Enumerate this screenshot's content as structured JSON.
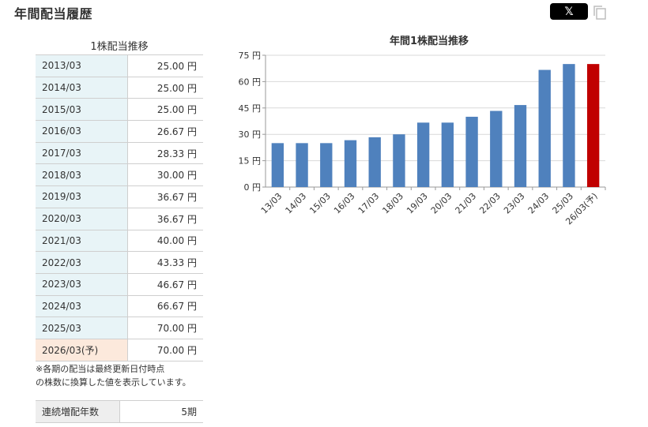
{
  "header": {
    "title": "年間配当履歴",
    "share_label": "𝕏"
  },
  "table": {
    "caption": "1株配当推移",
    "rows": [
      {
        "period": "2013/03",
        "value": "25.00 円"
      },
      {
        "period": "2014/03",
        "value": "25.00 円"
      },
      {
        "period": "2015/03",
        "value": "25.00 円"
      },
      {
        "period": "2016/03",
        "value": "26.67 円"
      },
      {
        "period": "2017/03",
        "value": "28.33 円"
      },
      {
        "period": "2018/03",
        "value": "30.00 円"
      },
      {
        "period": "2019/03",
        "value": "36.67 円"
      },
      {
        "period": "2020/03",
        "value": "36.67 円"
      },
      {
        "period": "2021/03",
        "value": "40.00 円"
      },
      {
        "period": "2022/03",
        "value": "43.33 円"
      },
      {
        "period": "2023/03",
        "value": "46.67 円"
      },
      {
        "period": "2024/03",
        "value": "66.67 円"
      },
      {
        "period": "2025/03",
        "value": "70.00 円"
      },
      {
        "period": "2026/03(予)",
        "value": "70.00 円",
        "forecast": true
      }
    ]
  },
  "note": {
    "line1": "※各期の配当は最終更新日付時点",
    "line2": "の株数に換算した値を表示しています。"
  },
  "streak": {
    "label": "連続増配年数",
    "value": "5期"
  },
  "colors": {
    "bar": "#4f81bd",
    "forecast_bar": "#c00000",
    "gridline": "#d9d9d9"
  },
  "chart_data": {
    "type": "bar",
    "title": "年間1株配当推移",
    "categories": [
      "13/03",
      "14/03",
      "15/03",
      "16/03",
      "17/03",
      "18/03",
      "19/03",
      "20/03",
      "21/03",
      "22/03",
      "23/03",
      "24/03",
      "25/03",
      "26/03(予)"
    ],
    "values": [
      25.0,
      25.0,
      25.0,
      26.67,
      28.33,
      30.0,
      36.67,
      36.67,
      40.0,
      43.33,
      46.67,
      66.67,
      70.0,
      70.0
    ],
    "highlight_index": 13,
    "ylim": [
      0,
      75
    ],
    "yticks": [
      0,
      15,
      30,
      45,
      60,
      75
    ],
    "ytick_labels": [
      "0 円",
      "15 円",
      "30 円",
      "45 円",
      "60 円",
      "75 円"
    ],
    "grid": true
  }
}
